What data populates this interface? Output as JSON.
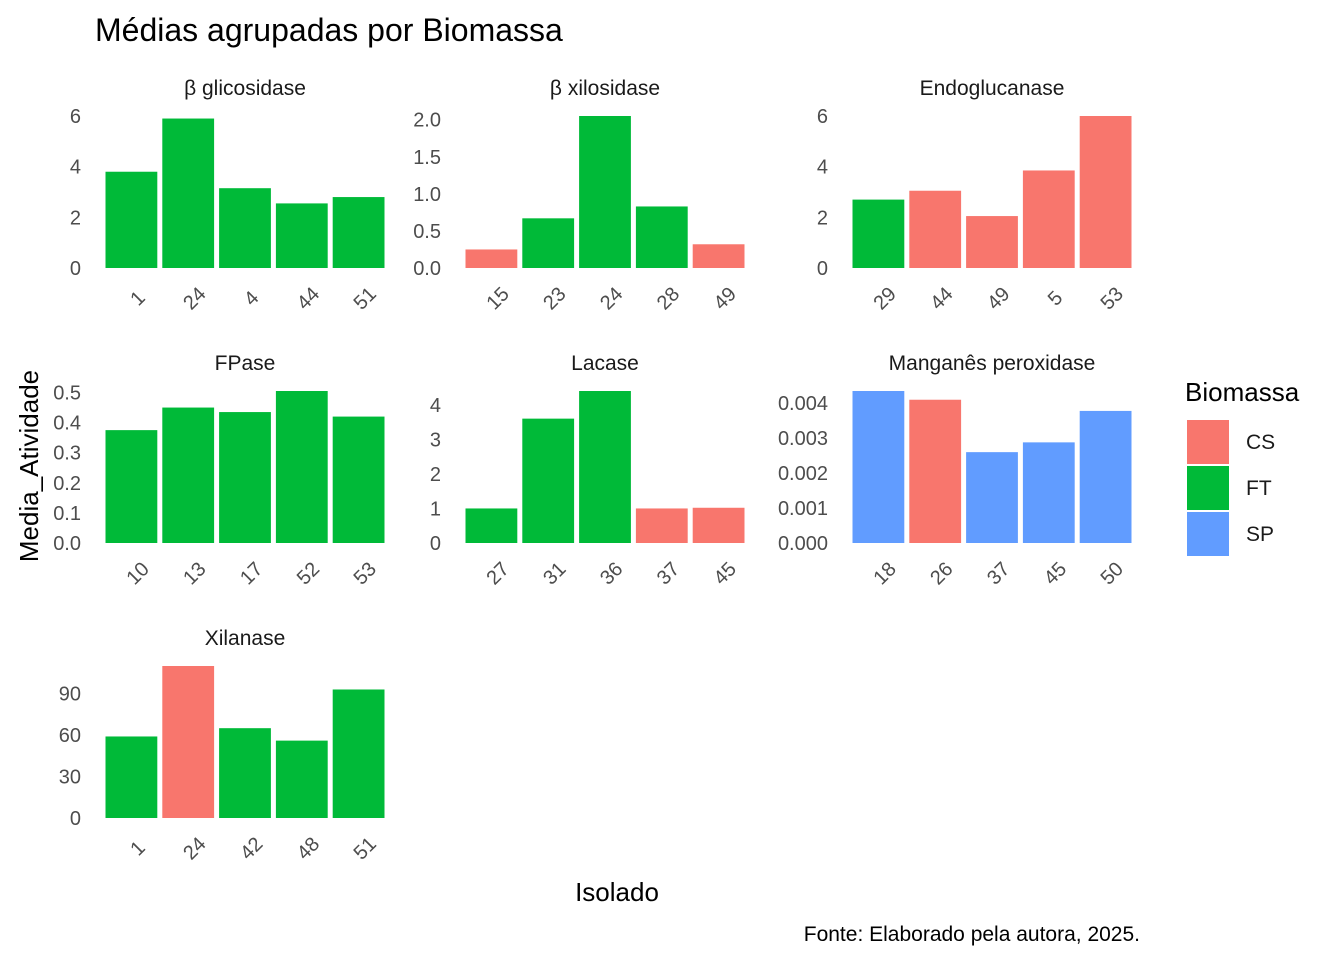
{
  "chart_data": {
    "type": "bar",
    "title": "Médias agrupadas por Biomassa",
    "xlabel": "Isolado",
    "ylabel": "Media_Atividade",
    "caption": "Fonte: Elaborado pela autora, 2025.",
    "legend": {
      "title": "Biomassa",
      "placement": "right",
      "entries": [
        {
          "label": "CS",
          "color": "#F8766D"
        },
        {
          "label": "FT",
          "color": "#00BA38"
        },
        {
          "label": "SP",
          "color": "#619CFF"
        }
      ]
    },
    "grid": false,
    "facets": [
      {
        "title": "β glicosidase",
        "ylim": [
          0,
          6
        ],
        "yticks": [
          0,
          2,
          4,
          6
        ],
        "ytick_labels": [
          "0",
          "2",
          "4",
          "6"
        ],
        "categories": [
          "1",
          "24",
          "4",
          "44",
          "51"
        ],
        "values": [
          3.8,
          5.9,
          3.15,
          2.55,
          2.8
        ],
        "groups": [
          "FT",
          "FT",
          "FT",
          "FT",
          "FT"
        ]
      },
      {
        "title": "β xilosidase",
        "ylim": [
          0,
          2.05
        ],
        "yticks": [
          0,
          0.5,
          1,
          1.5,
          2
        ],
        "ytick_labels": [
          "0.0",
          "0.5",
          "1.0",
          "1.5",
          "2.0"
        ],
        "categories": [
          "15",
          "23",
          "24",
          "28",
          "49"
        ],
        "values": [
          0.25,
          0.67,
          2.05,
          0.83,
          0.32
        ],
        "groups": [
          "CS",
          "FT",
          "FT",
          "FT",
          "CS"
        ]
      },
      {
        "title": "Endoglucanase",
        "ylim": [
          0,
          6
        ],
        "yticks": [
          0,
          2,
          4,
          6
        ],
        "ytick_labels": [
          "0",
          "2",
          "4",
          "6"
        ],
        "categories": [
          "29",
          "44",
          "49",
          "5",
          "53"
        ],
        "values": [
          2.7,
          3.05,
          2.05,
          3.85,
          6.0
        ],
        "groups": [
          "FT",
          "CS",
          "CS",
          "CS",
          "CS"
        ]
      },
      {
        "title": "FPase",
        "ylim": [
          0,
          0.505
        ],
        "yticks": [
          0,
          0.1,
          0.2,
          0.3,
          0.4,
          0.5
        ],
        "ytick_labels": [
          "0.0",
          "0.1",
          "0.2",
          "0.3",
          "0.4",
          "0.5"
        ],
        "categories": [
          "10",
          "13",
          "17",
          "52",
          "53"
        ],
        "values": [
          0.375,
          0.45,
          0.435,
          0.505,
          0.42
        ],
        "groups": [
          "FT",
          "FT",
          "FT",
          "FT",
          "FT"
        ]
      },
      {
        "title": "Lacase",
        "ylim": [
          0,
          4.4
        ],
        "yticks": [
          0,
          1,
          2,
          3,
          4
        ],
        "ytick_labels": [
          "0",
          "1",
          "2",
          "3",
          "4"
        ],
        "categories": [
          "27",
          "31",
          "36",
          "37",
          "45"
        ],
        "values": [
          1.0,
          3.6,
          4.4,
          1.0,
          1.02
        ],
        "groups": [
          "FT",
          "FT",
          "FT",
          "CS",
          "CS"
        ]
      },
      {
        "title": "Manganês peroxidase",
        "ylim": [
          0,
          0.00435
        ],
        "yticks": [
          0,
          0.001,
          0.002,
          0.003,
          0.004
        ],
        "ytick_labels": [
          "0.000",
          "0.001",
          "0.002",
          "0.003",
          "0.004"
        ],
        "categories": [
          "18",
          "26",
          "37",
          "45",
          "50"
        ],
        "values": [
          0.00435,
          0.0041,
          0.0026,
          0.00288,
          0.00378
        ],
        "groups": [
          "SP",
          "CS",
          "SP",
          "SP",
          "SP"
        ]
      },
      {
        "title": "Xilanase",
        "ylim": [
          0,
          110
        ],
        "yticks": [
          0,
          30,
          60,
          90
        ],
        "ytick_labels": [
          "0",
          "30",
          "60",
          "90"
        ],
        "categories": [
          "1",
          "24",
          "42",
          "48",
          "51"
        ],
        "values": [
          59,
          110,
          65,
          56,
          93
        ],
        "groups": [
          "FT",
          "CS",
          "FT",
          "FT",
          "FT"
        ]
      }
    ]
  }
}
